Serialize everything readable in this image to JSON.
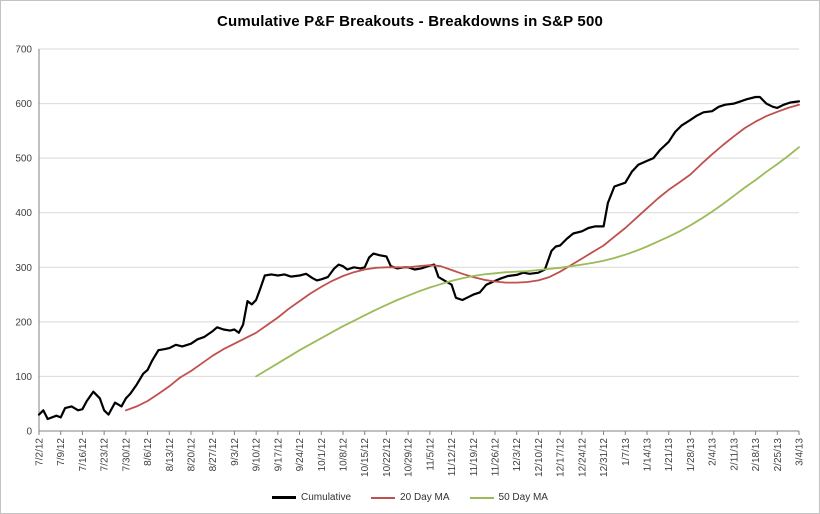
{
  "chart_data": {
    "type": "line",
    "title": "Cumulative P&F Breakouts - Breakdowns in S&P 500",
    "xlabel": "",
    "ylabel": "",
    "ylim": [
      0,
      700
    ],
    "y_ticks": [
      0,
      100,
      200,
      300,
      400,
      500,
      600,
      700
    ],
    "grid": "horizontal",
    "legend_position": "bottom",
    "x_unit": "weekly trading dates",
    "x_range": [
      0,
      35
    ],
    "x_tick_labels": [
      "7/2/12",
      "7/9/12",
      "7/16/12",
      "7/23/12",
      "7/30/12",
      "8/6/12",
      "8/13/12",
      "8/20/12",
      "8/27/12",
      "9/3/12",
      "9/10/12",
      "9/17/12",
      "9/24/12",
      "10/1/12",
      "10/8/12",
      "10/15/12",
      "10/22/12",
      "10/29/12",
      "11/5/12",
      "11/12/12",
      "11/19/12",
      "11/26/12",
      "12/3/12",
      "12/10/12",
      "12/17/12",
      "12/24/12",
      "12/31/12",
      "1/7/13",
      "1/14/13",
      "1/21/13",
      "1/28/13",
      "2/4/13",
      "2/11/13",
      "2/18/13",
      "2/25/13",
      "3/4/13"
    ],
    "series": [
      {
        "name": "Cumulative",
        "color": "#000000",
        "width": 2.2,
        "points": [
          [
            0,
            30
          ],
          [
            0.2,
            38
          ],
          [
            0.4,
            22
          ],
          [
            0.8,
            28
          ],
          [
            1,
            25
          ],
          [
            1.2,
            42
          ],
          [
            1.5,
            45
          ],
          [
            1.8,
            38
          ],
          [
            2,
            40
          ],
          [
            2.2,
            55
          ],
          [
            2.5,
            72
          ],
          [
            2.8,
            60
          ],
          [
            3,
            38
          ],
          [
            3.2,
            30
          ],
          [
            3.5,
            52
          ],
          [
            3.8,
            45
          ],
          [
            4,
            60
          ],
          [
            4.2,
            68
          ],
          [
            4.5,
            85
          ],
          [
            4.8,
            105
          ],
          [
            5,
            112
          ],
          [
            5.2,
            128
          ],
          [
            5.5,
            148
          ],
          [
            5.8,
            150
          ],
          [
            6,
            152
          ],
          [
            6.3,
            158
          ],
          [
            6.6,
            155
          ],
          [
            7,
            160
          ],
          [
            7.3,
            168
          ],
          [
            7.6,
            172
          ],
          [
            8,
            183
          ],
          [
            8.2,
            190
          ],
          [
            8.5,
            186
          ],
          [
            8.8,
            184
          ],
          [
            9,
            186
          ],
          [
            9.2,
            180
          ],
          [
            9.4,
            195
          ],
          [
            9.6,
            238
          ],
          [
            9.8,
            232
          ],
          [
            10,
            240
          ],
          [
            10.2,
            262
          ],
          [
            10.4,
            285
          ],
          [
            10.7,
            287
          ],
          [
            11,
            285
          ],
          [
            11.3,
            287
          ],
          [
            11.6,
            283
          ],
          [
            12,
            285
          ],
          [
            12.3,
            288
          ],
          [
            12.6,
            280
          ],
          [
            12.8,
            276
          ],
          [
            13,
            278
          ],
          [
            13.3,
            282
          ],
          [
            13.6,
            298
          ],
          [
            13.8,
            305
          ],
          [
            14,
            302
          ],
          [
            14.2,
            296
          ],
          [
            14.5,
            300
          ],
          [
            14.8,
            298
          ],
          [
            15,
            300
          ],
          [
            15.2,
            318
          ],
          [
            15.4,
            325
          ],
          [
            15.7,
            322
          ],
          [
            16,
            320
          ],
          [
            16.2,
            302
          ],
          [
            16.5,
            298
          ],
          [
            16.8,
            300
          ],
          [
            17,
            300
          ],
          [
            17.3,
            296
          ],
          [
            17.6,
            298
          ],
          [
            18,
            303
          ],
          [
            18.2,
            305
          ],
          [
            18.4,
            282
          ],
          [
            18.7,
            275
          ],
          [
            19,
            268
          ],
          [
            19.2,
            244
          ],
          [
            19.5,
            240
          ],
          [
            19.8,
            246
          ],
          [
            20,
            250
          ],
          [
            20.3,
            254
          ],
          [
            20.6,
            268
          ],
          [
            21,
            275
          ],
          [
            21.3,
            280
          ],
          [
            21.6,
            284
          ],
          [
            22,
            286
          ],
          [
            22.3,
            290
          ],
          [
            22.6,
            288
          ],
          [
            23,
            290
          ],
          [
            23.3,
            296
          ],
          [
            23.6,
            330
          ],
          [
            23.8,
            338
          ],
          [
            24,
            340
          ],
          [
            24.3,
            352
          ],
          [
            24.6,
            362
          ],
          [
            25,
            366
          ],
          [
            25.3,
            372
          ],
          [
            25.6,
            375
          ],
          [
            26,
            375
          ],
          [
            26.2,
            418
          ],
          [
            26.5,
            448
          ],
          [
            27,
            455
          ],
          [
            27.3,
            475
          ],
          [
            27.6,
            488
          ],
          [
            28,
            495
          ],
          [
            28.3,
            500
          ],
          [
            28.6,
            515
          ],
          [
            29,
            530
          ],
          [
            29.3,
            548
          ],
          [
            29.6,
            560
          ],
          [
            30,
            570
          ],
          [
            30.3,
            578
          ],
          [
            30.6,
            584
          ],
          [
            31,
            586
          ],
          [
            31.3,
            594
          ],
          [
            31.6,
            598
          ],
          [
            32,
            600
          ],
          [
            32.3,
            604
          ],
          [
            32.6,
            608
          ],
          [
            33,
            612
          ],
          [
            33.2,
            612
          ],
          [
            33.5,
            600
          ],
          [
            33.8,
            594
          ],
          [
            34,
            592
          ],
          [
            34.3,
            598
          ],
          [
            34.6,
            602
          ],
          [
            35,
            604
          ]
        ]
      },
      {
        "name": "20 Day MA",
        "color": "#C0504D",
        "width": 1.8,
        "points": [
          [
            4,
            38
          ],
          [
            4.5,
            45
          ],
          [
            5,
            55
          ],
          [
            5.5,
            68
          ],
          [
            6,
            82
          ],
          [
            6.5,
            98
          ],
          [
            7,
            110
          ],
          [
            7.5,
            124
          ],
          [
            8,
            138
          ],
          [
            8.5,
            150
          ],
          [
            9,
            160
          ],
          [
            9.5,
            170
          ],
          [
            10,
            180
          ],
          [
            10.5,
            194
          ],
          [
            11,
            208
          ],
          [
            11.5,
            224
          ],
          [
            12,
            238
          ],
          [
            12.5,
            252
          ],
          [
            13,
            264
          ],
          [
            13.5,
            275
          ],
          [
            14,
            284
          ],
          [
            14.5,
            291
          ],
          [
            15,
            296
          ],
          [
            15.5,
            299
          ],
          [
            16,
            300
          ],
          [
            16.5,
            300
          ],
          [
            17,
            300
          ],
          [
            17.5,
            302
          ],
          [
            18,
            304
          ],
          [
            18.5,
            302
          ],
          [
            19,
            295
          ],
          [
            19.5,
            288
          ],
          [
            20,
            282
          ],
          [
            20.5,
            277
          ],
          [
            21,
            274
          ],
          [
            21.5,
            272
          ],
          [
            22,
            272
          ],
          [
            22.5,
            273
          ],
          [
            23,
            276
          ],
          [
            23.5,
            282
          ],
          [
            24,
            292
          ],
          [
            24.5,
            304
          ],
          [
            25,
            316
          ],
          [
            25.5,
            328
          ],
          [
            26,
            340
          ],
          [
            26.5,
            356
          ],
          [
            27,
            372
          ],
          [
            27.5,
            390
          ],
          [
            28,
            408
          ],
          [
            28.5,
            426
          ],
          [
            29,
            442
          ],
          [
            29.5,
            456
          ],
          [
            30,
            470
          ],
          [
            30.5,
            489
          ],
          [
            31,
            507
          ],
          [
            31.5,
            524
          ],
          [
            32,
            540
          ],
          [
            32.5,
            555
          ],
          [
            33,
            567
          ],
          [
            33.5,
            577
          ],
          [
            34,
            585
          ],
          [
            34.5,
            592
          ],
          [
            35,
            598
          ]
        ]
      },
      {
        "name": "50 Day MA",
        "color": "#9BBB59",
        "width": 1.8,
        "points": [
          [
            10,
            100
          ],
          [
            10.5,
            112
          ],
          [
            11,
            124
          ],
          [
            11.5,
            136
          ],
          [
            12,
            148
          ],
          [
            12.5,
            159
          ],
          [
            13,
            170
          ],
          [
            13.5,
            181
          ],
          [
            14,
            192
          ],
          [
            14.5,
            202
          ],
          [
            15,
            212
          ],
          [
            15.5,
            222
          ],
          [
            16,
            231
          ],
          [
            16.5,
            240
          ],
          [
            17,
            248
          ],
          [
            17.5,
            256
          ],
          [
            18,
            263
          ],
          [
            18.5,
            269
          ],
          [
            19,
            275
          ],
          [
            19.5,
            280
          ],
          [
            20,
            284
          ],
          [
            20.5,
            287
          ],
          [
            21,
            289
          ],
          [
            21.5,
            291
          ],
          [
            22,
            292
          ],
          [
            22.5,
            293
          ],
          [
            23,
            295
          ],
          [
            23.5,
            297
          ],
          [
            24,
            299
          ],
          [
            24.5,
            302
          ],
          [
            25,
            305
          ],
          [
            25.5,
            308
          ],
          [
            26,
            312
          ],
          [
            26.5,
            317
          ],
          [
            27,
            323
          ],
          [
            27.5,
            330
          ],
          [
            28,
            338
          ],
          [
            28.5,
            347
          ],
          [
            29,
            356
          ],
          [
            29.5,
            366
          ],
          [
            30,
            377
          ],
          [
            30.5,
            389
          ],
          [
            31,
            402
          ],
          [
            31.5,
            416
          ],
          [
            32,
            431
          ],
          [
            32.5,
            446
          ],
          [
            33,
            460
          ],
          [
            33.5,
            475
          ],
          [
            34,
            489
          ],
          [
            34.5,
            504
          ],
          [
            35,
            520
          ]
        ]
      }
    ],
    "colors": {
      "gridline": "#d9d9d9",
      "axis": "#808080",
      "tick_label": "#404040"
    }
  }
}
